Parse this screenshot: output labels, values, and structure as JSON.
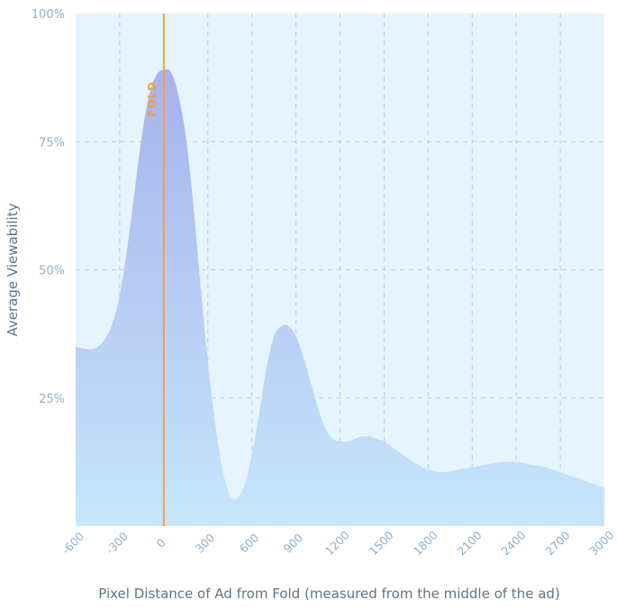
{
  "chart_data": {
    "type": "area",
    "title": "",
    "xlabel": "Pixel Distance of Ad from Fold (measured from the middle of the ad)",
    "ylabel": "Average Viewability",
    "xlim": [
      -600,
      3000
    ],
    "ylim": [
      0,
      100
    ],
    "x_ticks": [
      -600,
      -300,
      0,
      300,
      600,
      900,
      1200,
      1500,
      1800,
      2100,
      2400,
      2700,
      3000
    ],
    "x_tick_labels": [
      "-600",
      "-300",
      "0",
      "300",
      "600",
      "900",
      "1200",
      "1500",
      "1800",
      "2100",
      "2400",
      "2700",
      "3000"
    ],
    "y_ticks": [
      25,
      50,
      75,
      100
    ],
    "y_tick_labels": [
      "25%",
      "50%",
      "75%",
      "100%"
    ],
    "grid": true,
    "annotation": {
      "label": "FOLD",
      "x": 0,
      "color": "#f0a04b"
    },
    "series": [
      {
        "x": [
          -600,
          -500,
          -450,
          -400,
          -350,
          -300,
          -250,
          -200,
          -150,
          -100,
          -50,
          0,
          50,
          100,
          150,
          200,
          250,
          300,
          350,
          400,
          450,
          500,
          550,
          600,
          650,
          700,
          750,
          800,
          850,
          900,
          950,
          1000,
          1050,
          1100,
          1150,
          1200,
          1250,
          1300,
          1350,
          1400,
          1450,
          1500,
          1600,
          1700,
          1800,
          1900,
          2000,
          2100,
          2200,
          2300,
          2400,
          2500,
          2600,
          2700,
          2800,
          2900,
          3000
        ],
        "values": [
          35,
          34.5,
          35,
          36.5,
          39.5,
          45,
          54,
          65,
          76,
          84,
          88,
          89,
          88.5,
          84,
          76,
          63,
          47,
          32,
          20,
          11,
          6,
          5.5,
          8,
          14,
          22,
          31,
          37,
          39,
          39,
          37,
          33,
          28,
          23,
          19,
          17,
          16.5,
          16.5,
          17,
          17.5,
          17.5,
          17,
          16.5,
          14.5,
          12.5,
          11,
          10.5,
          11,
          11.5,
          12,
          12.5,
          12.5,
          12,
          11.5,
          10.5,
          9.5,
          8.5,
          7.5
        ],
        "colors": {
          "top": "#a8b2ec",
          "bottom": "#c6e6fb"
        }
      }
    ],
    "colors": {
      "plot_background": "#e6f4fe",
      "grid": "#b8cdd9",
      "tick_text": "#8fb0c9",
      "axis_label": "#5c7688"
    }
  }
}
